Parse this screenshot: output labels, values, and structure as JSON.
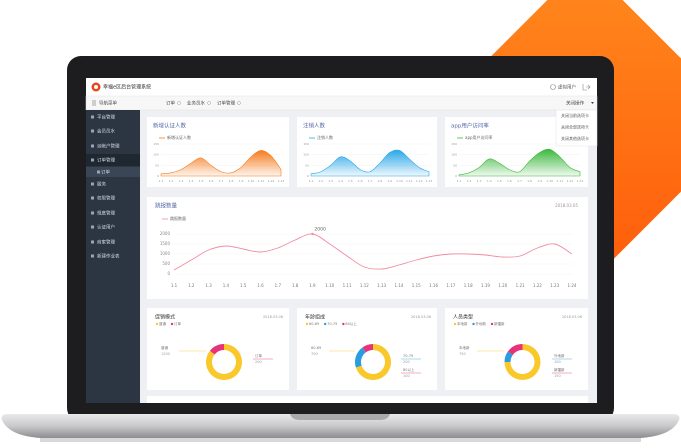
{
  "header": {
    "title": "幸福e区后台管理系统",
    "user": "虚拟用户"
  },
  "toolbar": {
    "menu": "导航菜单",
    "tabs": [
      "订单",
      "业务员水",
      "订单管理"
    ],
    "close": "关闭操作"
  },
  "close_menu": [
    "关闭当前选项卡",
    "关闭全部选项卡",
    "关闭其他选项卡"
  ],
  "sidebar": [
    "平台管理",
    "会员员水",
    "派帐户管理",
    "订单管理",
    "订单",
    "服务",
    "权限管理",
    "规度管理",
    "认证用户",
    "商家管理",
    "新建作业表"
  ],
  "top_charts": [
    {
      "type": "area",
      "title": "新增认证人数",
      "legend": "新增认证人数",
      "color": "#f57c1f",
      "ylim": [
        0,
        150
      ],
      "yticks": [
        0,
        50,
        100,
        150
      ],
      "categories": [
        "1.1",
        "1.2",
        "1.3",
        "1.4",
        "1.5",
        "1.6",
        "1.7",
        "1.8",
        "1.9",
        "1.10",
        "1.11",
        "1.12",
        "1.13"
      ],
      "values": [
        10,
        15,
        30,
        60,
        85,
        50,
        20,
        15,
        40,
        90,
        120,
        95,
        30
      ]
    },
    {
      "type": "area",
      "title": "注销人数",
      "legend": "注销人数",
      "color": "#2aa7e8",
      "ylim": [
        0,
        150
      ],
      "yticks": [
        0,
        50,
        100,
        150
      ],
      "categories": [
        "1.1",
        "1.2",
        "1.3",
        "1.4",
        "1.5",
        "1.6",
        "1.7",
        "1.8",
        "1.9",
        "1.10",
        "1.11",
        "1.12",
        "1.13"
      ],
      "values": [
        10,
        20,
        50,
        90,
        70,
        30,
        20,
        60,
        110,
        120,
        80,
        40,
        20
      ]
    },
    {
      "type": "area",
      "title": "app用户访问率",
      "legend": "app用户访问率",
      "color": "#3cb83c",
      "ylim": [
        0,
        150
      ],
      "yticks": [
        0,
        50,
        100,
        150
      ],
      "categories": [
        "1.1",
        "1.2",
        "1.3",
        "1.4",
        "1.5",
        "1.6",
        "1.7",
        "1.8",
        "1.9",
        "1.10",
        "1.11",
        "1.12",
        "1.13"
      ],
      "values": [
        5,
        15,
        40,
        80,
        60,
        30,
        20,
        70,
        110,
        125,
        90,
        40,
        20
      ]
    }
  ],
  "line_chart": {
    "type": "line",
    "title": "跳报数量",
    "date": "2018.03.05",
    "legend": "跳报数量",
    "color": "#f08ca0",
    "ylim": [
      0,
      2000
    ],
    "yticks": [
      0,
      500,
      1000,
      1500,
      2000
    ],
    "categories": [
      "1.1",
      "1.2",
      "1.3",
      "1.4",
      "1.5",
      "1.6",
      "1.7",
      "1.8",
      "1.9",
      "1.10",
      "1.11",
      "1.12",
      "1.13",
      "1.14",
      "1.15",
      "1.16",
      "1.17",
      "1.18",
      "1.19",
      "1.20",
      "1.21",
      "1.22",
      "1.23",
      "1.24"
    ],
    "values": [
      200,
      700,
      1200,
      1400,
      1250,
      1100,
      1300,
      1700,
      2000,
      1500,
      900,
      350,
      250,
      450,
      700,
      900,
      1000,
      1000,
      950,
      850,
      900,
      1300,
      1500,
      1000
    ],
    "annotate_index": 8
  },
  "donuts": [
    {
      "type": "pie",
      "title": "促销模式",
      "date": "2018.03.06",
      "series": [
        {
          "name": "普通",
          "value": 1200,
          "color": "#f9c82b"
        },
        {
          "name": "订单",
          "value": 200,
          "color": "#e6337a"
        }
      ]
    },
    {
      "type": "pie",
      "title": "年龄组成",
      "date": "2018.03.06",
      "series": [
        {
          "name": "60-69",
          "value": 700,
          "color": "#f9c82b"
        },
        {
          "name": "70-79",
          "value": 200,
          "color": "#2a9de0"
        },
        {
          "name": "80以上",
          "value": 100,
          "color": "#e6337a"
        }
      ]
    },
    {
      "type": "pie",
      "title": "人员类型",
      "date": "2018.03.06",
      "series": [
        {
          "name": "本地新",
          "value": 750,
          "color": "#f9c82b"
        },
        {
          "name": "外地新",
          "value": 100,
          "color": "#2a9de0"
        },
        {
          "name": "新疆新",
          "value": 150,
          "color": "#e6337a"
        }
      ]
    }
  ]
}
